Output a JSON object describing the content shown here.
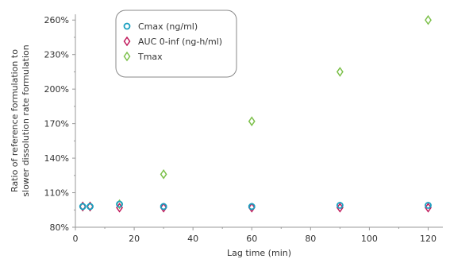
{
  "chart_data": {
    "type": "scatter",
    "xlabel": "Lag time (min)",
    "ylabel": [
      "Ratio of reference formulation to",
      "slower dissolution rate formulation"
    ],
    "xlim": [
      0,
      125
    ],
    "ylim": [
      80,
      265
    ],
    "xticks": [
      0,
      20,
      40,
      60,
      80,
      100,
      120
    ],
    "yticks": [
      80,
      110,
      140,
      170,
      200,
      230,
      260
    ],
    "ytick_suffix": "%",
    "grid": false,
    "legend_position": "top-center",
    "series": [
      {
        "name": "Cmax (ng/ml)",
        "marker": "circle",
        "color": "#1a9fbf",
        "x": [
          2.5,
          5,
          15,
          30,
          60,
          90,
          120
        ],
        "y": [
          98,
          98,
          100,
          98,
          98,
          99,
          99
        ]
      },
      {
        "name": "AUC 0-inf (ng-h/ml)",
        "marker": "diamond",
        "color": "#c0185a",
        "x": [
          2.5,
          5,
          15,
          30,
          60,
          90,
          120
        ],
        "y": [
          98,
          98,
          97,
          97,
          97,
          97,
          97
        ]
      },
      {
        "name": "Tmax",
        "marker": "diamond",
        "color": "#7cc04a",
        "x": [
          2.5,
          5,
          15,
          30,
          60,
          90,
          120
        ],
        "y": [
          98,
          98,
          100,
          126,
          172,
          215,
          260
        ]
      }
    ]
  }
}
